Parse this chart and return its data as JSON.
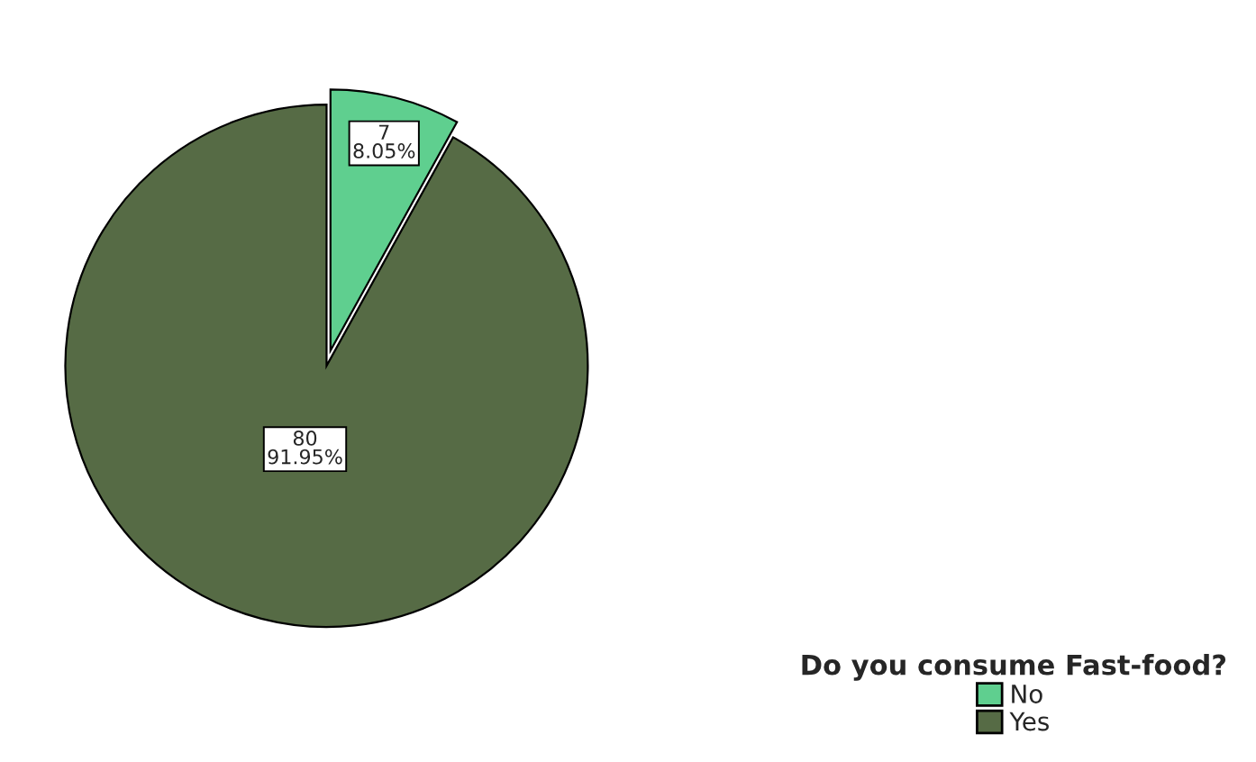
{
  "chart_data": {
    "type": "pie",
    "categories": [
      "No",
      "Yes"
    ],
    "values": [
      7,
      80
    ],
    "colors": [
      "#5fcf8f",
      "#566b45"
    ],
    "value_labels": [
      "7\n8.05%",
      "80\n91.95%"
    ],
    "legend_title": "Do you consume Fast-food?",
    "legend": "bottom right"
  }
}
